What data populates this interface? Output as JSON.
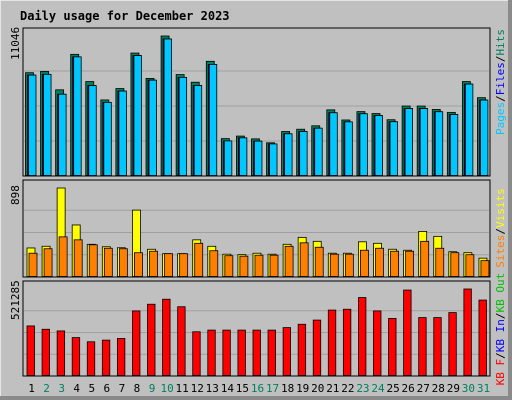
{
  "title": "Daily usage for December 2023",
  "colors": {
    "background": "#c0c0c0",
    "grid": "#a0a0a0",
    "title": "#0000ff",
    "hits": "#00805c",
    "files": "#0000ff",
    "pages": "#00c8ff",
    "visits": "#ffff00",
    "sites": "#ff8000",
    "kb_in": "#00c000",
    "kb_out": "#ff0000",
    "weekend": "#00805c",
    "weekday": "#000000"
  },
  "y_axis_labels": {
    "top": "11046",
    "middle": "898",
    "bottom": "521285"
  },
  "legends": {
    "top": [
      "Hits",
      "Files",
      "Pages"
    ],
    "middle": [
      "Visits",
      "Sites"
    ],
    "bottom": [
      "KB Out",
      "KB In",
      "KB F"
    ],
    "separator": "/"
  },
  "chart_data": {
    "type": "bar",
    "days": [
      "1",
      "2",
      "3",
      "4",
      "5",
      "6",
      "7",
      "8",
      "9",
      "10",
      "11",
      "12",
      "13",
      "14",
      "15",
      "16",
      "17",
      "18",
      "19",
      "20",
      "21",
      "22",
      "23",
      "24",
      "25",
      "26",
      "27",
      "28",
      "29",
      "30",
      "31"
    ],
    "weekend_days": [
      "2",
      "3",
      "9",
      "10",
      "16",
      "17",
      "23",
      "24",
      "30",
      "31"
    ],
    "series": [
      {
        "name": "Hits",
        "panel": "top",
        "max": 11046,
        "values": [
          8150,
          8250,
          6800,
          9600,
          7450,
          6000,
          6900,
          9700,
          7700,
          11046,
          8000,
          7400,
          9050,
          2950,
          3150,
          2930,
          2620,
          3510,
          3690,
          3960,
          5220,
          4420,
          5080,
          4930,
          4440,
          5520,
          5520,
          5250,
          5020,
          7450,
          6180
        ]
      },
      {
        "name": "Files",
        "panel": "top",
        "max": 11046,
        "values": [
          7960,
          8020,
          6450,
          9400,
          7130,
          5810,
          6700,
          9500,
          7560,
          10810,
          7780,
          7140,
          8800,
          2770,
          3010,
          2750,
          2530,
          3330,
          3510,
          3770,
          4990,
          4270,
          4910,
          4770,
          4280,
          5320,
          5320,
          5070,
          4850,
          7250,
          5990
        ]
      },
      {
        "name": "Pages",
        "panel": "top",
        "max": 11046,
        "values": [
          7960,
          8020,
          6450,
          9400,
          7130,
          5810,
          6700,
          9500,
          7560,
          10810,
          7780,
          7140,
          8800,
          2770,
          3010,
          2750,
          2530,
          3330,
          3510,
          3770,
          4990,
          4270,
          4910,
          4770,
          4280,
          5320,
          5320,
          5070,
          4850,
          7250,
          5990
        ]
      },
      {
        "name": "Visits",
        "panel": "middle",
        "max": 898,
        "values": [
          293,
          310,
          898,
          525,
          330,
          305,
          295,
          675,
          280,
          235,
          235,
          375,
          310,
          230,
          225,
          240,
          230,
          330,
          400,
          360,
          240,
          240,
          355,
          340,
          280,
          270,
          460,
          410,
          255,
          245,
          190
        ]
      },
      {
        "name": "Sites",
        "panel": "middle",
        "max": 898,
        "values": [
          240,
          285,
          405,
          375,
          325,
          290,
          285,
          245,
          260,
          235,
          235,
          340,
          265,
          215,
          210,
          220,
          220,
          310,
          345,
          300,
          230,
          230,
          270,
          290,
          260,
          260,
          360,
          290,
          245,
          225,
          165
        ]
      },
      {
        "name": "KB F",
        "panel": "bottom",
        "max": 521285,
        "values": [
          300000,
          280000,
          270000,
          230000,
          205000,
          215000,
          225000,
          390000,
          430000,
          460000,
          415000,
          265000,
          275000,
          275000,
          275000,
          275000,
          275000,
          290000,
          310000,
          335000,
          395000,
          400000,
          470000,
          390000,
          345000,
          515000,
          350000,
          350000,
          380000,
          521285,
          455000
        ]
      }
    ]
  }
}
